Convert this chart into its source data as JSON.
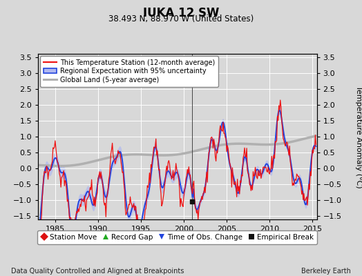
{
  "title": "IUKA 12 SW",
  "subtitle": "38.493 N, 88.970 W (United States)",
  "xlabel_bottom": "Data Quality Controlled and Aligned at Breakpoints",
  "xlabel_right": "Berkeley Earth",
  "ylabel_right": "Temperature Anomaly (°C)",
  "xlim": [
    1983.0,
    2015.5
  ],
  "ylim": [
    -1.6,
    3.6
  ],
  "yticks": [
    -1.5,
    -1.0,
    -0.5,
    0.0,
    0.5,
    1.0,
    1.5,
    2.0,
    2.5,
    3.0,
    3.5
  ],
  "xticks": [
    1985,
    1990,
    1995,
    2000,
    2005,
    2010,
    2015
  ],
  "bg_color": "#d8d8d8",
  "plot_bg_color": "#d8d8d8",
  "grid_color": "#ffffff",
  "empirical_break_x": 2001.0,
  "empirical_break_y": -1.03,
  "vertical_line_x": 2001.0
}
